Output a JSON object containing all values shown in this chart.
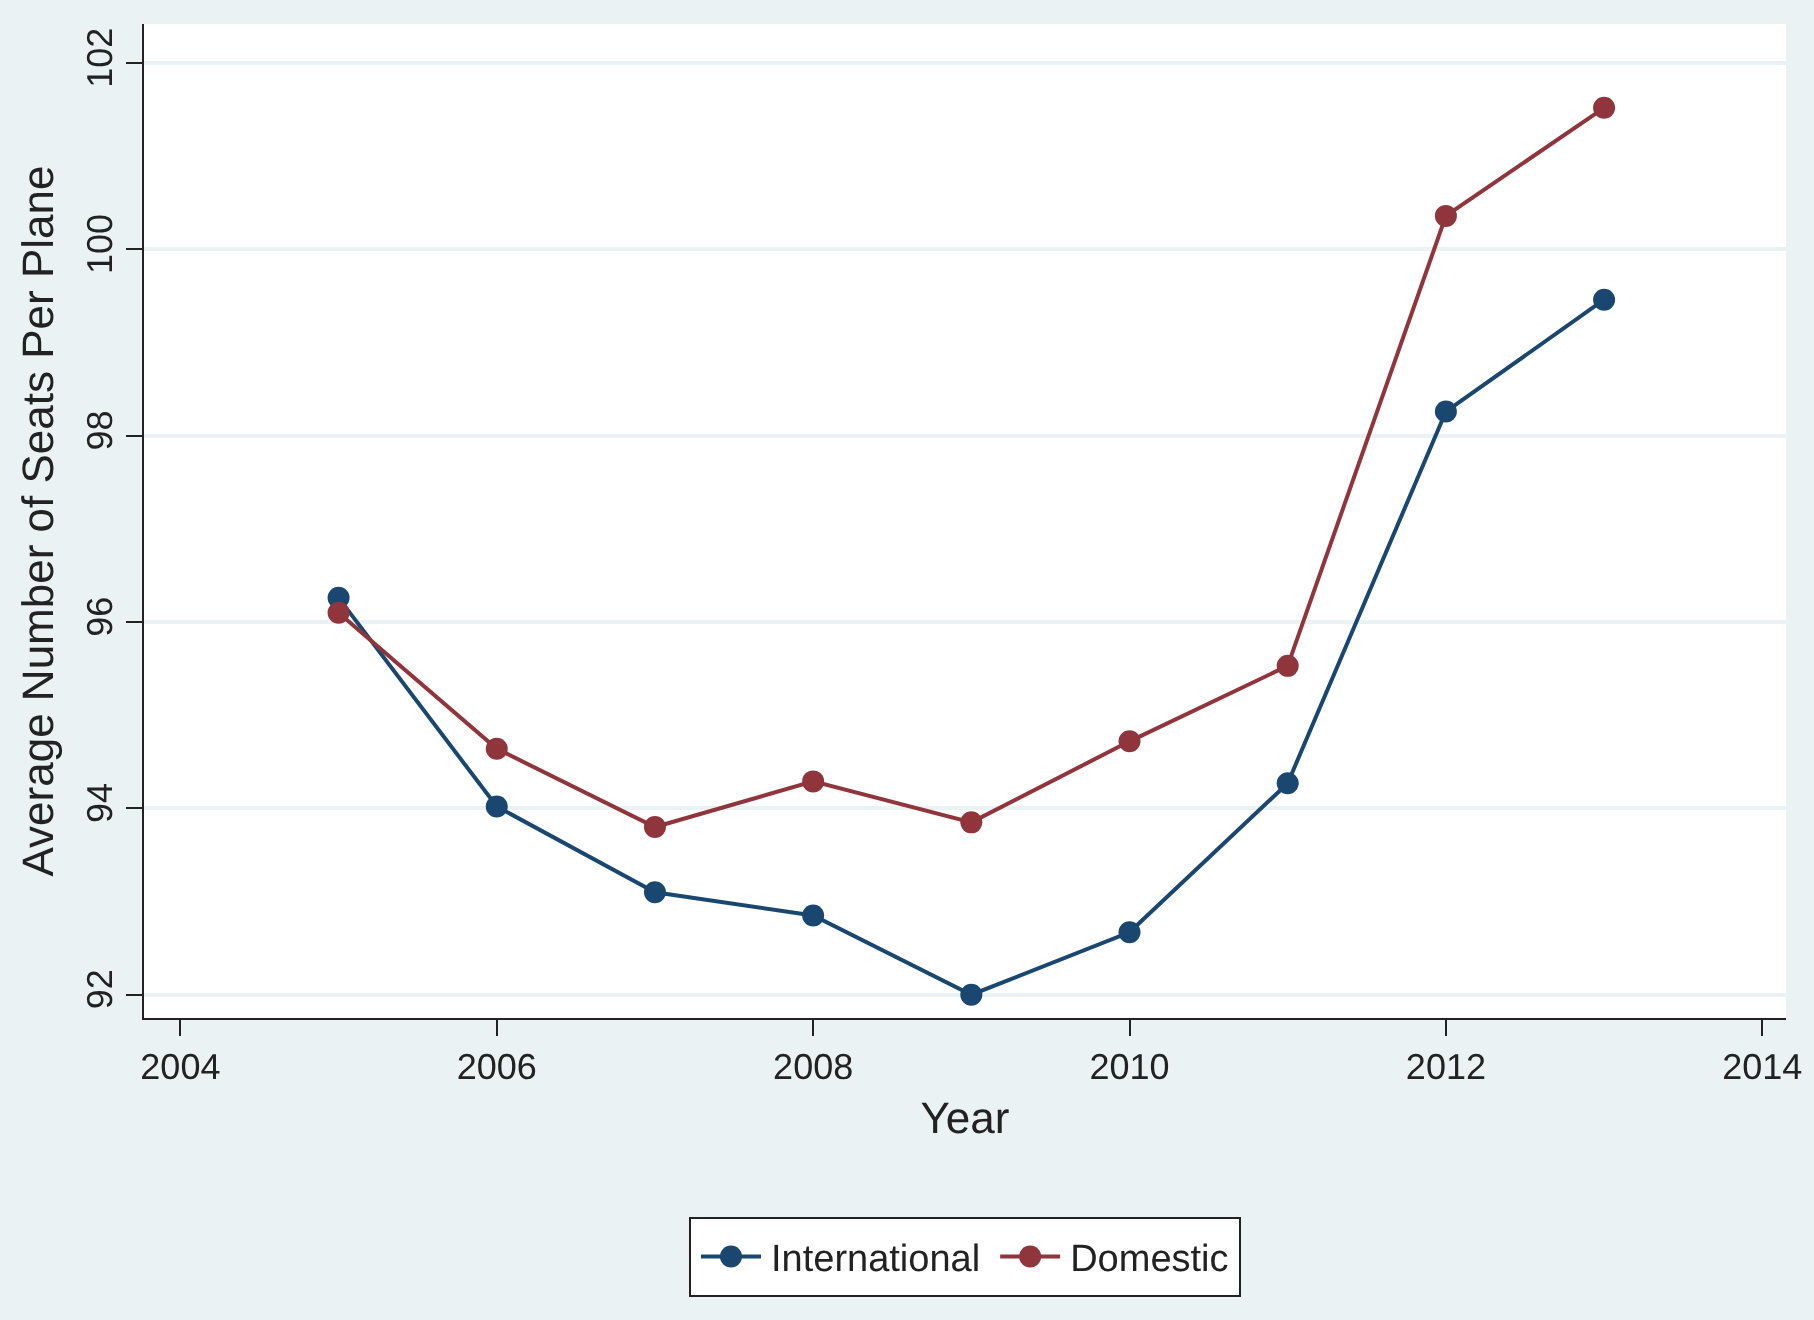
{
  "chart_data": {
    "type": "line",
    "xlabel": "Year",
    "ylabel": "Average Number of Seats Per Plane",
    "x": [
      2005,
      2006,
      2007,
      2008,
      2009,
      2010,
      2011,
      2012,
      2013
    ],
    "series": [
      {
        "name": "International",
        "color": "#1a476f",
        "values": [
          96.26,
          94.02,
          93.1,
          92.85,
          92.0,
          92.67,
          94.27,
          98.26,
          99.46
        ]
      },
      {
        "name": "Domestic",
        "color": "#90353b",
        "values": [
          96.1,
          94.64,
          93.8,
          94.29,
          93.85,
          94.72,
          95.53,
          100.36,
          101.52
        ]
      }
    ],
    "xlim": [
      2003.77,
      2014.15
    ],
    "xticks": [
      2004,
      2006,
      2008,
      2010,
      2012,
      2014
    ],
    "ylim": [
      91.75,
      102.42
    ],
    "yticks": [
      92,
      94,
      96,
      98,
      100,
      102
    ],
    "grid": "y",
    "legend": "bottom",
    "marker": "circle",
    "line_style": "solid"
  }
}
